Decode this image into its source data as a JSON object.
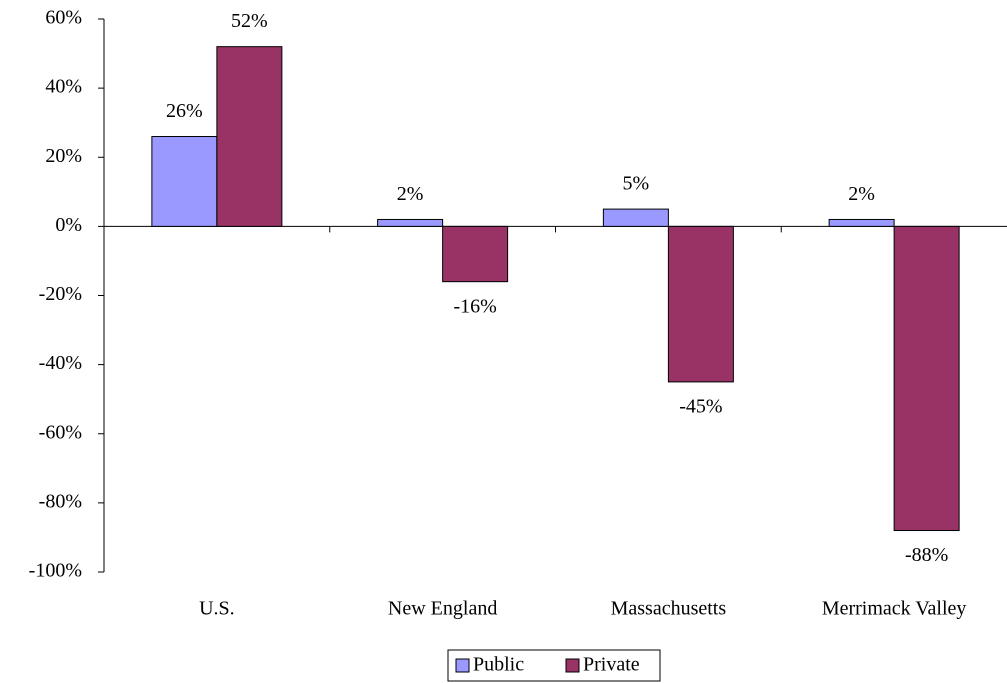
{
  "chart_data": {
    "type": "bar",
    "categories": [
      "U.S.",
      "New England",
      "Massachusetts",
      "Merrimack Valley"
    ],
    "series": [
      {
        "name": "Public",
        "color": "#9999ff",
        "values": [
          26,
          2,
          5,
          2
        ],
        "value_labels": [
          "26%",
          "2%",
          "5%",
          "2%"
        ]
      },
      {
        "name": "Private",
        "color": "#993366",
        "values": [
          52,
          -16,
          -45,
          -88
        ],
        "value_labels": [
          "52%",
          "-16%",
          "-45%",
          "-88%"
        ]
      }
    ],
    "ylim": [
      -100,
      60
    ],
    "yticks": [
      {
        "value": -100,
        "label": "-100%"
      },
      {
        "value": -80,
        "label": "-80%"
      },
      {
        "value": -60,
        "label": "-60%"
      },
      {
        "value": -40,
        "label": "-40%"
      },
      {
        "value": -20,
        "label": "-20%"
      },
      {
        "value": 0,
        "label": "0%"
      },
      {
        "value": 20,
        "label": "20%"
      },
      {
        "value": 40,
        "label": "40%"
      },
      {
        "value": 60,
        "label": "60%"
      }
    ],
    "legend": "bottom"
  }
}
